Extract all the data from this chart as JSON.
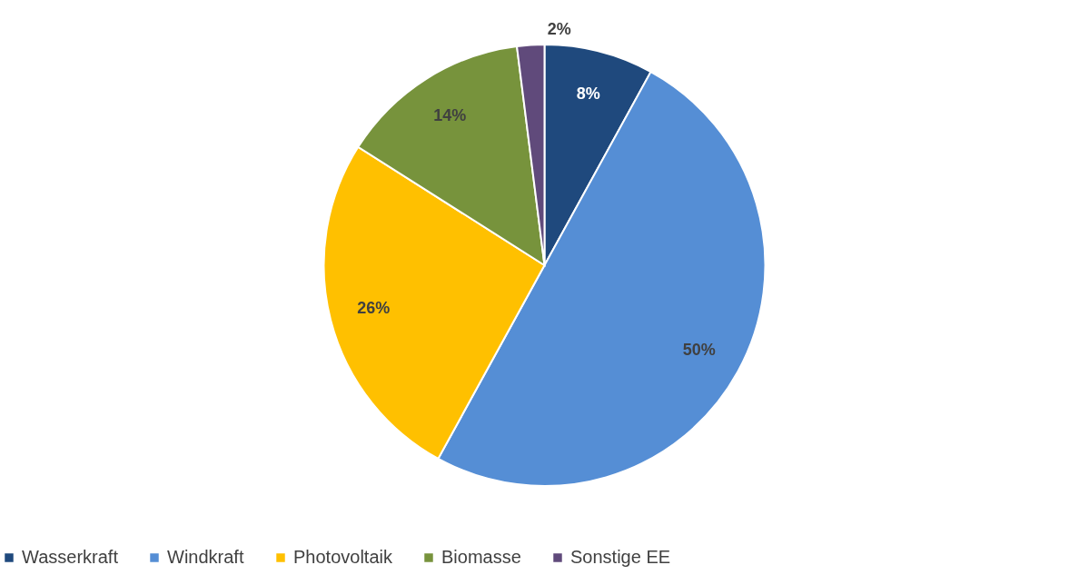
{
  "chart_data": {
    "type": "pie",
    "categories": [
      "Wasserkraft",
      "Windkraft",
      "Photovoltaik",
      "Biomasse",
      "Sonstige EE"
    ],
    "values": [
      8,
      50,
      26,
      14,
      2
    ],
    "colors": [
      "#1f497d",
      "#558ed5",
      "#ffc000",
      "#77933c",
      "#604a7b"
    ],
    "value_labels": [
      "8%",
      "50%",
      "26%",
      "14%",
      "2%"
    ],
    "legend": "bottom"
  }
}
